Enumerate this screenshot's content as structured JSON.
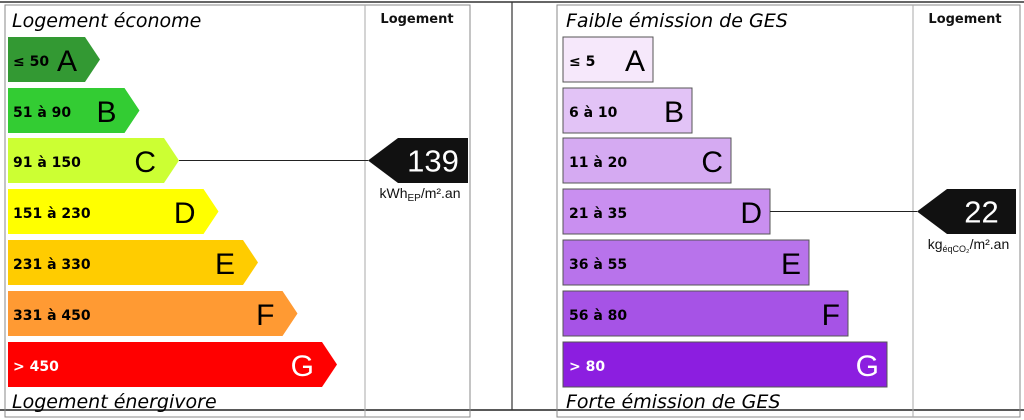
{
  "energy": {
    "top_label": "Logement économe",
    "bottom_label": "Logement énergivore",
    "column_header": "Logement",
    "value": "139",
    "unit_main": "kWh",
    "unit_sub": "EP",
    "unit_tail": "/m².an",
    "current_class": "C",
    "classes": [
      {
        "letter": "A",
        "range": "≤ 50",
        "color": "#339933",
        "text_color": "#000000"
      },
      {
        "letter": "B",
        "range": "51 à 90",
        "color": "#33cc33",
        "text_color": "#000000"
      },
      {
        "letter": "C",
        "range": "91 à 150",
        "color": "#ccff33",
        "text_color": "#000000"
      },
      {
        "letter": "D",
        "range": "151 à 230",
        "color": "#ffff00",
        "text_color": "#000000"
      },
      {
        "letter": "E",
        "range": "231 à 330",
        "color": "#ffcc00",
        "text_color": "#000000"
      },
      {
        "letter": "F",
        "range": "331 à 450",
        "color": "#ff9a33",
        "text_color": "#000000"
      },
      {
        "letter": "G",
        "range": "> 450",
        "color": "#ff0000",
        "text_color": "#ffffff"
      }
    ]
  },
  "ges": {
    "top_label": "Faible émission de GES",
    "bottom_label": "Forte émission de GES",
    "column_header": "Logement",
    "value": "22",
    "unit_main": "kg",
    "unit_sub": "éqCO₂",
    "unit_tail": "/m².an",
    "current_class": "D",
    "classes": [
      {
        "letter": "A",
        "range": "≤ 5",
        "color": "#f6e8fb",
        "text_color": "#000000"
      },
      {
        "letter": "B",
        "range": "6 à 10",
        "color": "#e2c3f6",
        "text_color": "#000000"
      },
      {
        "letter": "C",
        "range": "11 à 20",
        "color": "#d5aaf2",
        "text_color": "#000000"
      },
      {
        "letter": "D",
        "range": "21 à 35",
        "color": "#c98ff0",
        "text_color": "#000000"
      },
      {
        "letter": "E",
        "range": "36 à 55",
        "color": "#b873eb",
        "text_color": "#000000"
      },
      {
        "letter": "F",
        "range": "56 à 80",
        "color": "#a653e6",
        "text_color": "#000000"
      },
      {
        "letter": "G",
        "range": "> 80",
        "color": "#8c1ee0",
        "text_color": "#ffffff"
      }
    ]
  }
}
